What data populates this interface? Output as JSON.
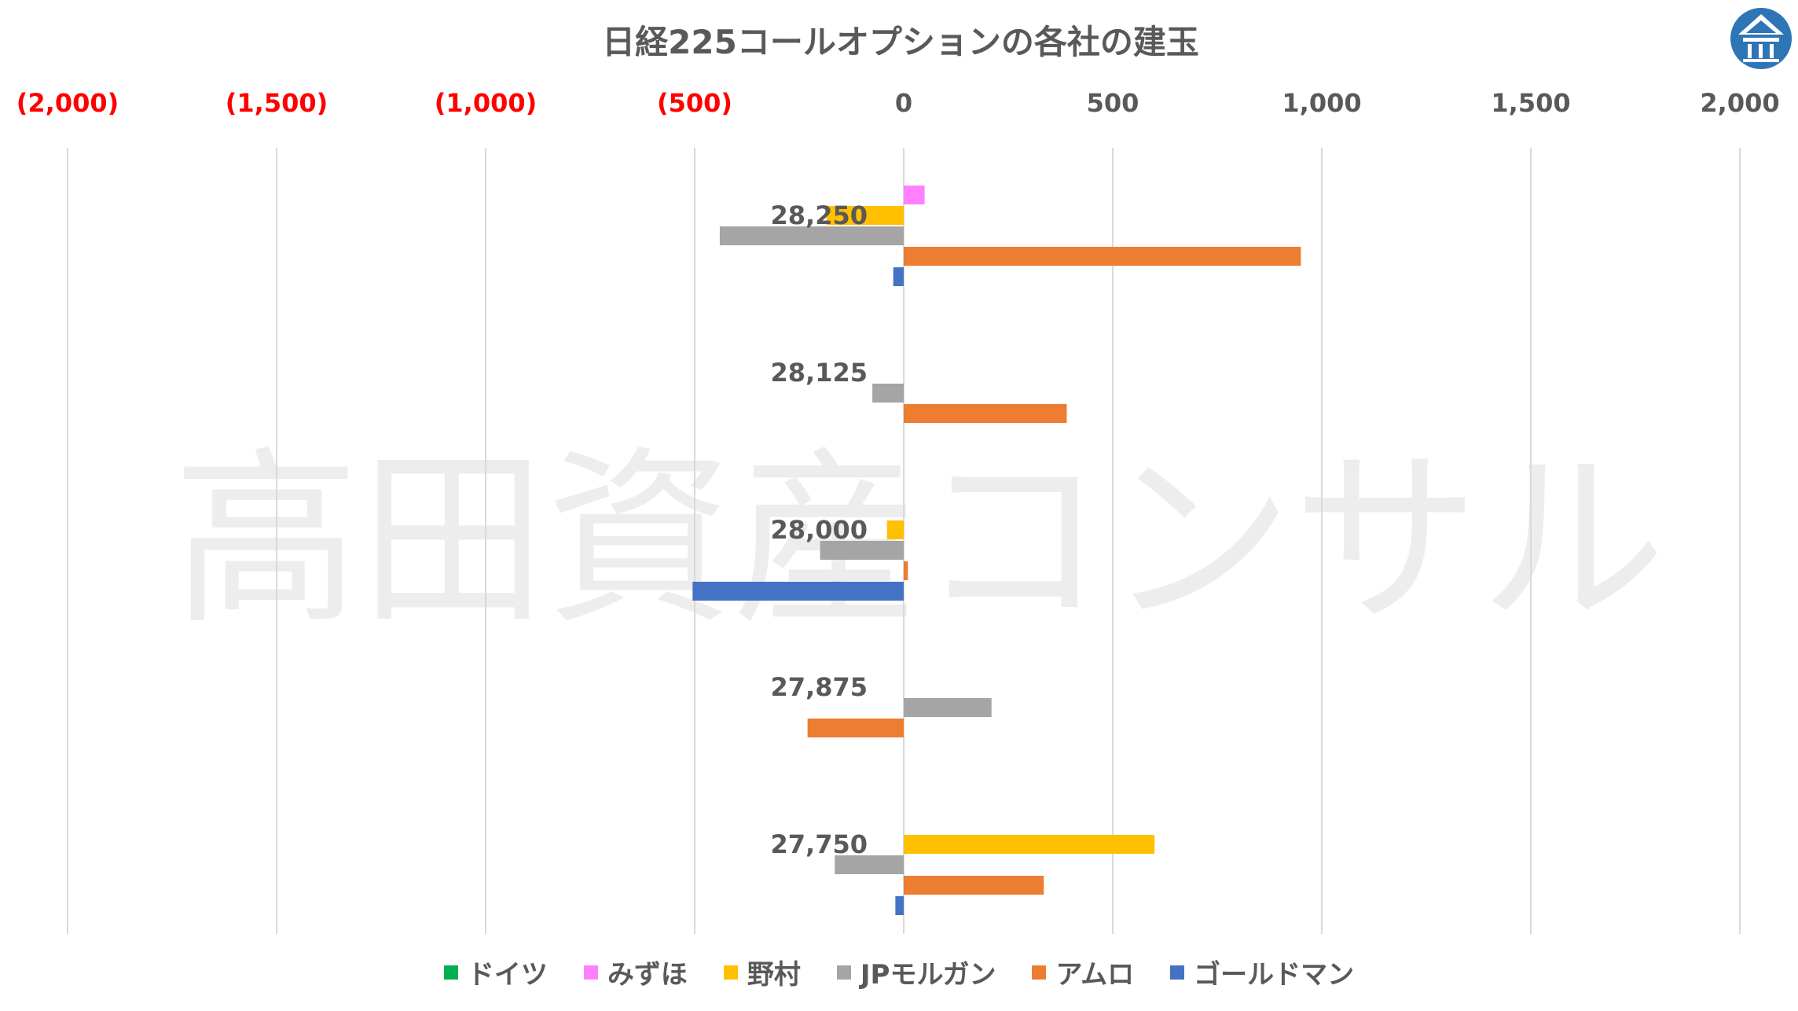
{
  "title": "日経225コールオプションの各社の建玉",
  "watermark": "高田資産コンサル",
  "chart_data": {
    "type": "bar",
    "orientation": "horizontal",
    "title": "日経225コールオプションの各社の建玉",
    "xlim": [
      -2000,
      2000
    ],
    "x_ticks": [
      {
        "value": -2000,
        "label": "(2,000)",
        "color": "#ff0000"
      },
      {
        "value": -1500,
        "label": "(1,500)",
        "color": "#ff0000"
      },
      {
        "value": -1000,
        "label": "(1,000)",
        "color": "#ff0000"
      },
      {
        "value": -500,
        "label": "(500)",
        "color": "#ff0000"
      },
      {
        "value": 0,
        "label": "0",
        "color": "#595959"
      },
      {
        "value": 500,
        "label": "500",
        "color": "#595959"
      },
      {
        "value": 1000,
        "label": "1,000",
        "color": "#595959"
      },
      {
        "value": 1500,
        "label": "1,500",
        "color": "#595959"
      },
      {
        "value": 2000,
        "label": "2,000",
        "color": "#595959"
      }
    ],
    "grid": true,
    "legend_position": "bottom",
    "categories": [
      "28,250",
      "28,125",
      "28,000",
      "27,875",
      "27,750"
    ],
    "series": [
      {
        "name": "ドイツ",
        "color": "#00b050",
        "values": [
          0,
          0,
          0,
          0,
          0
        ]
      },
      {
        "name": "みずほ",
        "color": "#ff80ff",
        "values": [
          50,
          0,
          0,
          0,
          0
        ]
      },
      {
        "name": "野村",
        "color": "#ffc000",
        "values": [
          -185,
          0,
          -40,
          0,
          600
        ]
      },
      {
        "name": "JPモルガン",
        "color": "#a5a5a5",
        "values": [
          -440,
          -75,
          -200,
          210,
          -165
        ]
      },
      {
        "name": "アムロ",
        "color": "#ed7d31",
        "values": [
          950,
          390,
          10,
          -230,
          335
        ]
      },
      {
        "name": "ゴールドマン",
        "color": "#4472c4",
        "values": [
          -25,
          0,
          -505,
          0,
          -20
        ]
      }
    ]
  }
}
